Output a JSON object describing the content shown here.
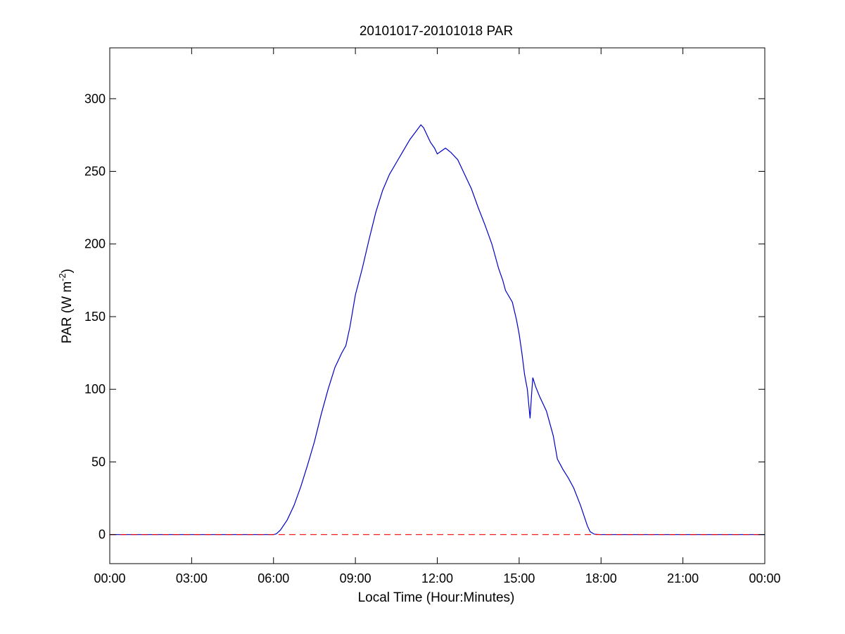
{
  "chart_data": {
    "type": "line",
    "title": "20101017-20101018 PAR",
    "xlabel": "Local Time (Hour:Minutes)",
    "ylabel_main": "PAR (W m",
    "ylabel_sup": "-2",
    "ylabel_tail": ")",
    "xlim": [
      0,
      24
    ],
    "ylim": [
      -20,
      335
    ],
    "xticks": [
      0,
      3,
      6,
      9,
      12,
      15,
      18,
      21,
      24
    ],
    "xtick_labels": [
      "00:00",
      "03:00",
      "06:00",
      "09:00",
      "12:00",
      "15:00",
      "18:00",
      "21:00",
      "00:00"
    ],
    "yticks": [
      0,
      50,
      100,
      150,
      200,
      250,
      300
    ],
    "ytick_labels": [
      "0",
      "50",
      "100",
      "150",
      "200",
      "250",
      "300"
    ],
    "grid": false,
    "series": [
      {
        "color": "#0000c8",
        "style": "solid",
        "points": [
          [
            0,
            0
          ],
          [
            6.0,
            0
          ],
          [
            6.1,
            0.5
          ],
          [
            6.25,
            3
          ],
          [
            6.5,
            10
          ],
          [
            6.75,
            20
          ],
          [
            7.0,
            33
          ],
          [
            7.25,
            48
          ],
          [
            7.5,
            64
          ],
          [
            7.75,
            83
          ],
          [
            8.0,
            100
          ],
          [
            8.25,
            115
          ],
          [
            8.5,
            125
          ],
          [
            8.65,
            130
          ],
          [
            8.8,
            143
          ],
          [
            9.0,
            165
          ],
          [
            9.25,
            183
          ],
          [
            9.5,
            203
          ],
          [
            9.75,
            222
          ],
          [
            10.0,
            237
          ],
          [
            10.25,
            248
          ],
          [
            10.5,
            256
          ],
          [
            10.75,
            264
          ],
          [
            11.0,
            272
          ],
          [
            11.2,
            277
          ],
          [
            11.4,
            282
          ],
          [
            11.5,
            280
          ],
          [
            11.6,
            276
          ],
          [
            11.75,
            270
          ],
          [
            11.9,
            266
          ],
          [
            12.0,
            262
          ],
          [
            12.15,
            264
          ],
          [
            12.3,
            266
          ],
          [
            12.5,
            263
          ],
          [
            12.75,
            258
          ],
          [
            13.0,
            248
          ],
          [
            13.25,
            238
          ],
          [
            13.5,
            225
          ],
          [
            13.75,
            213
          ],
          [
            14.0,
            200
          ],
          [
            14.25,
            183
          ],
          [
            14.4,
            175
          ],
          [
            14.5,
            168
          ],
          [
            14.75,
            160
          ],
          [
            14.9,
            148
          ],
          [
            15.0,
            138
          ],
          [
            15.1,
            125
          ],
          [
            15.2,
            110
          ],
          [
            15.3,
            100
          ],
          [
            15.35,
            90
          ],
          [
            15.4,
            80
          ],
          [
            15.45,
            95
          ],
          [
            15.5,
            108
          ],
          [
            15.6,
            102
          ],
          [
            15.75,
            95
          ],
          [
            16.0,
            85
          ],
          [
            16.25,
            68
          ],
          [
            16.4,
            52
          ],
          [
            16.6,
            45
          ],
          [
            16.8,
            39
          ],
          [
            17.0,
            32
          ],
          [
            17.25,
            20
          ],
          [
            17.5,
            6
          ],
          [
            17.6,
            2
          ],
          [
            17.75,
            0.3
          ],
          [
            18.0,
            0
          ],
          [
            24,
            0
          ]
        ]
      },
      {
        "color": "#ff0000",
        "style": "dashed",
        "points": [
          [
            0,
            0
          ],
          [
            24,
            0
          ]
        ]
      }
    ]
  }
}
